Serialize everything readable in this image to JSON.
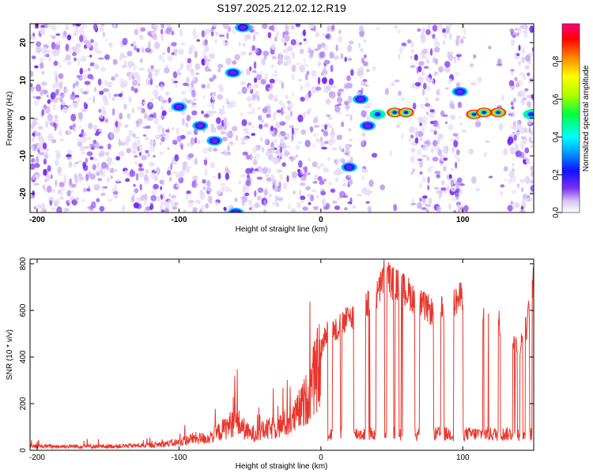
{
  "figure": {
    "title": "S197.2025.212.02.12.R19"
  },
  "chart_data": [
    {
      "type": "heatmap",
      "name": "spectrogram",
      "xlabel": "Height of straight line (km)",
      "ylabel": "Frequency (Hz)",
      "xlim": [
        -205,
        150
      ],
      "ylim": [
        -25,
        25
      ],
      "xticks": [
        -200,
        -100,
        0,
        100
      ],
      "yticks": [
        -20,
        -10,
        0,
        10,
        20
      ],
      "colorbar": {
        "label": "Normalized spectral amplitude",
        "range": [
          0,
          1
        ],
        "ticks": [
          "0.0",
          "0.2",
          "0.4",
          "0.6",
          "0.8"
        ]
      },
      "features": [
        {
          "x": -100,
          "freq": 3,
          "amplitude": 0.25
        },
        {
          "x": -85,
          "freq": -2,
          "amplitude": 0.25
        },
        {
          "x": -75,
          "freq": -6,
          "amplitude": 0.25
        },
        {
          "x": -62,
          "freq": 12,
          "amplitude": 0.25
        },
        {
          "x": -60,
          "freq": -25,
          "amplitude": 0.2
        },
        {
          "x": -55,
          "freq": 24,
          "amplitude": 0.2
        },
        {
          "x": 20,
          "freq": -13,
          "amplitude": 0.25
        },
        {
          "x": 28,
          "freq": 5,
          "amplitude": 0.3
        },
        {
          "x": 33,
          "freq": -2,
          "amplitude": 0.3
        },
        {
          "x": 40,
          "freq": 1,
          "amplitude": 0.4
        },
        {
          "x": 52,
          "freq": 1.5,
          "amplitude": 0.8
        },
        {
          "x": 60,
          "freq": 1.5,
          "amplitude": 0.8
        },
        {
          "x": 98,
          "freq": 7,
          "amplitude": 0.3
        },
        {
          "x": 108,
          "freq": 1,
          "amplitude": 0.75
        },
        {
          "x": 115,
          "freq": 1.5,
          "amplitude": 0.8
        },
        {
          "x": 125,
          "freq": 1.5,
          "amplitude": 0.8
        },
        {
          "x": 148,
          "freq": 1,
          "amplitude": 0.4
        }
      ]
    },
    {
      "type": "line",
      "name": "snr",
      "xlabel": "Height of straight line (km)",
      "ylabel": "SNR (10 * v/v)",
      "xlim": [
        -205,
        150
      ],
      "ylim": [
        0,
        820
      ],
      "xticks": [
        -200,
        -100,
        0,
        100
      ],
      "yticks": [
        0,
        200,
        400,
        600,
        800
      ],
      "color": "#e8362c",
      "x": [
        -205,
        -180,
        -150,
        -120,
        -100,
        -90,
        -80,
        -70,
        -60,
        -50,
        -40,
        -30,
        -20,
        -10,
        0,
        5,
        10,
        20,
        30,
        40,
        45,
        50,
        60,
        70,
        80,
        90,
        100,
        110,
        120,
        130,
        140,
        145,
        150
      ],
      "values": [
        20,
        20,
        20,
        25,
        40,
        60,
        60,
        100,
        150,
        80,
        100,
        120,
        150,
        260,
        450,
        560,
        540,
        600,
        640,
        700,
        800,
        760,
        720,
        660,
        620,
        640,
        700,
        660,
        600,
        560,
        460,
        560,
        760
      ]
    }
  ]
}
